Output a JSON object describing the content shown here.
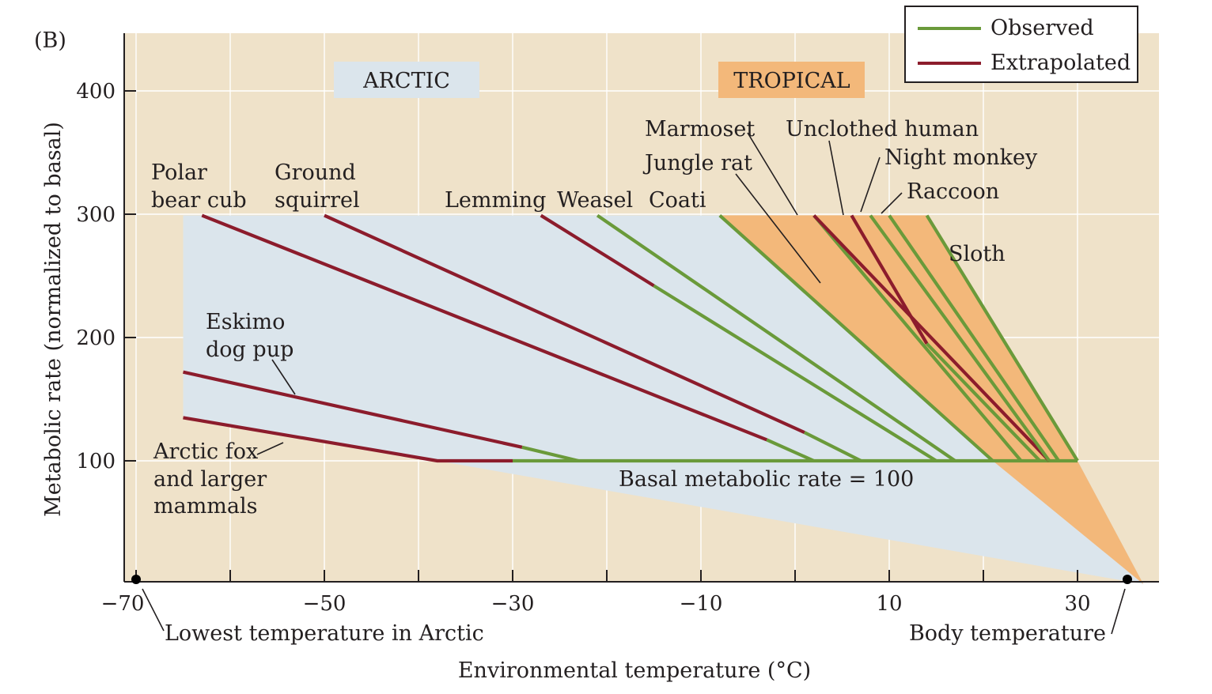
{
  "panel_label": "(B)",
  "chart_data": {
    "type": "line",
    "title": "",
    "xlabel": "Environmental temperature (°C)",
    "ylabel": "Metabolic rate (normalized to basal)",
    "xlim": [
      -70,
      40
    ],
    "ylim": [
      0,
      445
    ],
    "x_ticks": [
      -70,
      -50,
      -30,
      -10,
      10,
      30
    ],
    "x_minor_ticks": [
      -60,
      -40,
      -20,
      0,
      20
    ],
    "y_ticks": [
      100,
      200,
      300,
      400
    ],
    "grid": true,
    "legend": {
      "placement": "top-right",
      "entries": [
        {
          "label": "Observed",
          "color": "#6a9a3a"
        },
        {
          "label": "Extrapolated",
          "color": "#8c1c2c"
        }
      ]
    },
    "colors": {
      "background": "#efe2c9",
      "arctic_region": "#dbe5ec",
      "tropical_region": "#f3b87a",
      "observed": "#6a9a3a",
      "extrapolated": "#8c1c2c"
    },
    "regions": [
      {
        "label": "ARCTIC"
      },
      {
        "label": "TROPICAL"
      }
    ],
    "reference_line": {
      "label": "Basal metabolic rate = 100",
      "y": 100,
      "x_range": [
        -38,
        30
      ]
    },
    "points": [
      {
        "label": "Lowest temperature in Arctic",
        "x": -70,
        "y": 0
      },
      {
        "label": "Body temperature",
        "x": 37,
        "y": 0
      }
    ],
    "series": [
      {
        "name": "Arctic fox and larger mammals",
        "segments": [
          {
            "kind": "extrapolated",
            "points": [
              [
                -65,
                135
              ],
              [
                -38,
                100
              ],
              [
                -30,
                100
              ]
            ]
          },
          {
            "kind": "observed",
            "points": [
              [
                -30,
                100
              ],
              [
                30,
                100
              ]
            ]
          }
        ]
      },
      {
        "name": "Eskimo dog pup",
        "segments": [
          {
            "kind": "extrapolated",
            "points": [
              [
                -65,
                172
              ],
              [
                -29,
                111
              ]
            ]
          },
          {
            "kind": "observed",
            "points": [
              [
                -29,
                111
              ],
              [
                -23,
                100
              ]
            ]
          }
        ]
      },
      {
        "name": "Polar bear cub",
        "segments": [
          {
            "kind": "extrapolated",
            "points": [
              [
                -63,
                299
              ],
              [
                -3,
                117
              ]
            ]
          },
          {
            "kind": "observed",
            "points": [
              [
                -3,
                117
              ],
              [
                2,
                100
              ]
            ]
          }
        ]
      },
      {
        "name": "Ground squirrel",
        "segments": [
          {
            "kind": "extrapolated",
            "points": [
              [
                -50,
                299
              ],
              [
                1,
                123
              ]
            ]
          },
          {
            "kind": "observed",
            "points": [
              [
                1,
                123
              ],
              [
                7,
                100
              ]
            ]
          }
        ]
      },
      {
        "name": "Lemming",
        "segments": [
          {
            "kind": "extrapolated",
            "points": [
              [
                -27,
                299
              ],
              [
                -15,
                242
              ]
            ]
          },
          {
            "kind": "observed",
            "points": [
              [
                -15,
                242
              ],
              [
                15,
                100
              ]
            ]
          }
        ]
      },
      {
        "name": "Weasel",
        "segments": [
          {
            "kind": "observed",
            "points": [
              [
                -21,
                299
              ],
              [
                17,
                100
              ]
            ]
          }
        ]
      },
      {
        "name": "Coati",
        "segments": [
          {
            "kind": "observed",
            "points": [
              [
                -8,
                299
              ],
              [
                21,
                100
              ]
            ]
          }
        ]
      },
      {
        "name": "Jungle rat",
        "segments": [
          {
            "kind": "observed",
            "points": [
              [
                2,
                299
              ],
              [
                24,
                100
              ]
            ]
          }
        ]
      },
      {
        "name": "Marmoset",
        "segments": [
          {
            "kind": "extrapolated",
            "points": [
              [
                2,
                299
              ],
              [
                27,
                100
              ]
            ]
          }
        ]
      },
      {
        "name": "Unclothed human",
        "segments": [
          {
            "kind": "extrapolated",
            "points": [
              [
                6,
                299
              ],
              [
                14,
                195
              ]
            ]
          },
          {
            "kind": "observed",
            "points": [
              [
                14,
                195
              ],
              [
                26,
                100
              ]
            ]
          }
        ]
      },
      {
        "name": "Night monkey",
        "segments": [
          {
            "kind": "observed",
            "points": [
              [
                8,
                299
              ],
              [
                27,
                100
              ]
            ]
          }
        ]
      },
      {
        "name": "Raccoon",
        "segments": [
          {
            "kind": "observed",
            "points": [
              [
                10,
                299
              ],
              [
                28,
                100
              ]
            ]
          }
        ]
      },
      {
        "name": "Sloth",
        "segments": [
          {
            "kind": "observed",
            "points": [
              [
                14,
                299
              ],
              [
                30,
                100
              ]
            ]
          }
        ]
      }
    ]
  }
}
